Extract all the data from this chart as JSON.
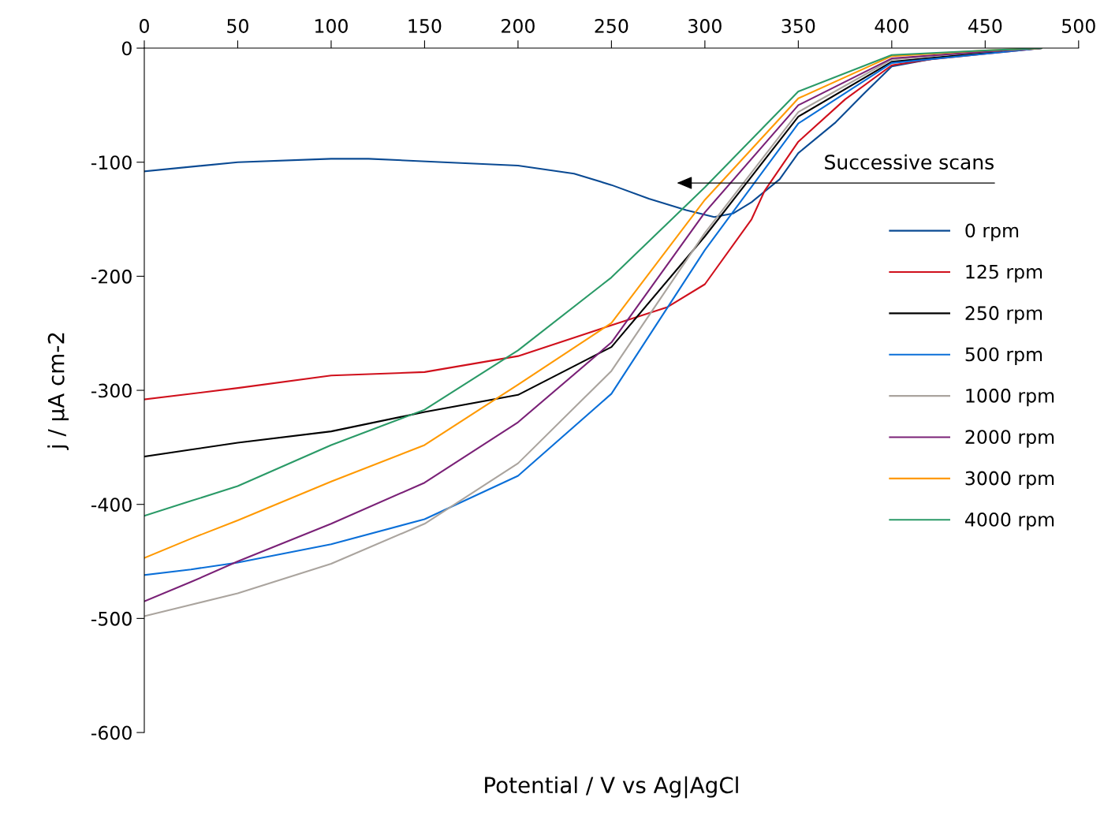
{
  "chart_data": {
    "type": "line",
    "xlabel": "Potential / V vs Ag|AgCl",
    "ylabel": "j / μA cm-2",
    "x": [
      0,
      25,
      50,
      100,
      150,
      200,
      250,
      300,
      350,
      400,
      450,
      480
    ],
    "series": [
      {
        "name": "0 rpm",
        "color": "#0a4a93",
        "x": [
          0,
          50,
          100,
          120,
          160,
          200,
          230,
          250,
          270,
          290,
          305,
          315,
          325,
          340,
          350,
          370,
          385,
          400,
          420,
          440,
          460,
          480
        ],
        "values": [
          -108,
          -100,
          -97,
          -97,
          -100,
          -103,
          -110,
          -120,
          -132,
          -142,
          -148,
          -145,
          -135,
          -115,
          -92,
          -65,
          -40,
          -16,
          -10,
          -5,
          -2,
          0
        ]
      },
      {
        "name": "125 rpm",
        "color": "#d0101c",
        "x": [
          0,
          50,
          100,
          150,
          200,
          250,
          280,
          300,
          325,
          332,
          350,
          375,
          400,
          420,
          450,
          480
        ],
        "values": [
          -308,
          -298,
          -287,
          -284,
          -270,
          -243,
          -227,
          -207,
          -150,
          -125,
          -82,
          -45,
          -15,
          -10,
          -5,
          0
        ]
      },
      {
        "name": "250 rpm",
        "color": "#000000",
        "values": [
          -358,
          -352,
          -346,
          -336,
          -319,
          -304,
          -262,
          -165,
          -60,
          -12,
          -4,
          0
        ]
      },
      {
        "name": "500 rpm",
        "color": "#0a6fd8",
        "values": [
          -462,
          -457,
          -451,
          -435,
          -413,
          -375,
          -303,
          -177,
          -66,
          -13,
          -5,
          0
        ]
      },
      {
        "name": "1000 rpm",
        "color": "#aaa49e",
        "values": [
          -498,
          -488,
          -478,
          -452,
          -417,
          -364,
          -283,
          -162,
          -56,
          -10,
          -3,
          0
        ]
      },
      {
        "name": "2000 rpm",
        "color": "#7a2177",
        "values": [
          -485,
          -468,
          -450,
          -417,
          -381,
          -328,
          -258,
          -144,
          -50,
          -9,
          -3,
          0
        ]
      },
      {
        "name": "3000 rpm",
        "color": "#ff9900",
        "values": [
          -447,
          -430,
          -414,
          -380,
          -348,
          -295,
          -241,
          -133,
          -44,
          -7,
          -2,
          0
        ]
      },
      {
        "name": "4000 rpm",
        "color": "#2a9a67",
        "values": [
          -410,
          -397,
          -384,
          -348,
          -317,
          -265,
          -201,
          -122,
          -38,
          -6,
          -2,
          0
        ]
      }
    ],
    "xlim": [
      0,
      500
    ],
    "xticks": [
      0,
      50,
      100,
      150,
      200,
      250,
      300,
      350,
      400,
      450,
      500
    ],
    "ylim": [
      -600,
      0
    ],
    "yticks": [
      -600,
      -500,
      -400,
      -300,
      -200,
      -100,
      0
    ],
    "annotations": [
      "Successive scans"
    ],
    "legend": "right",
    "grid": false,
    "marker": "none",
    "line_style": "solid"
  }
}
